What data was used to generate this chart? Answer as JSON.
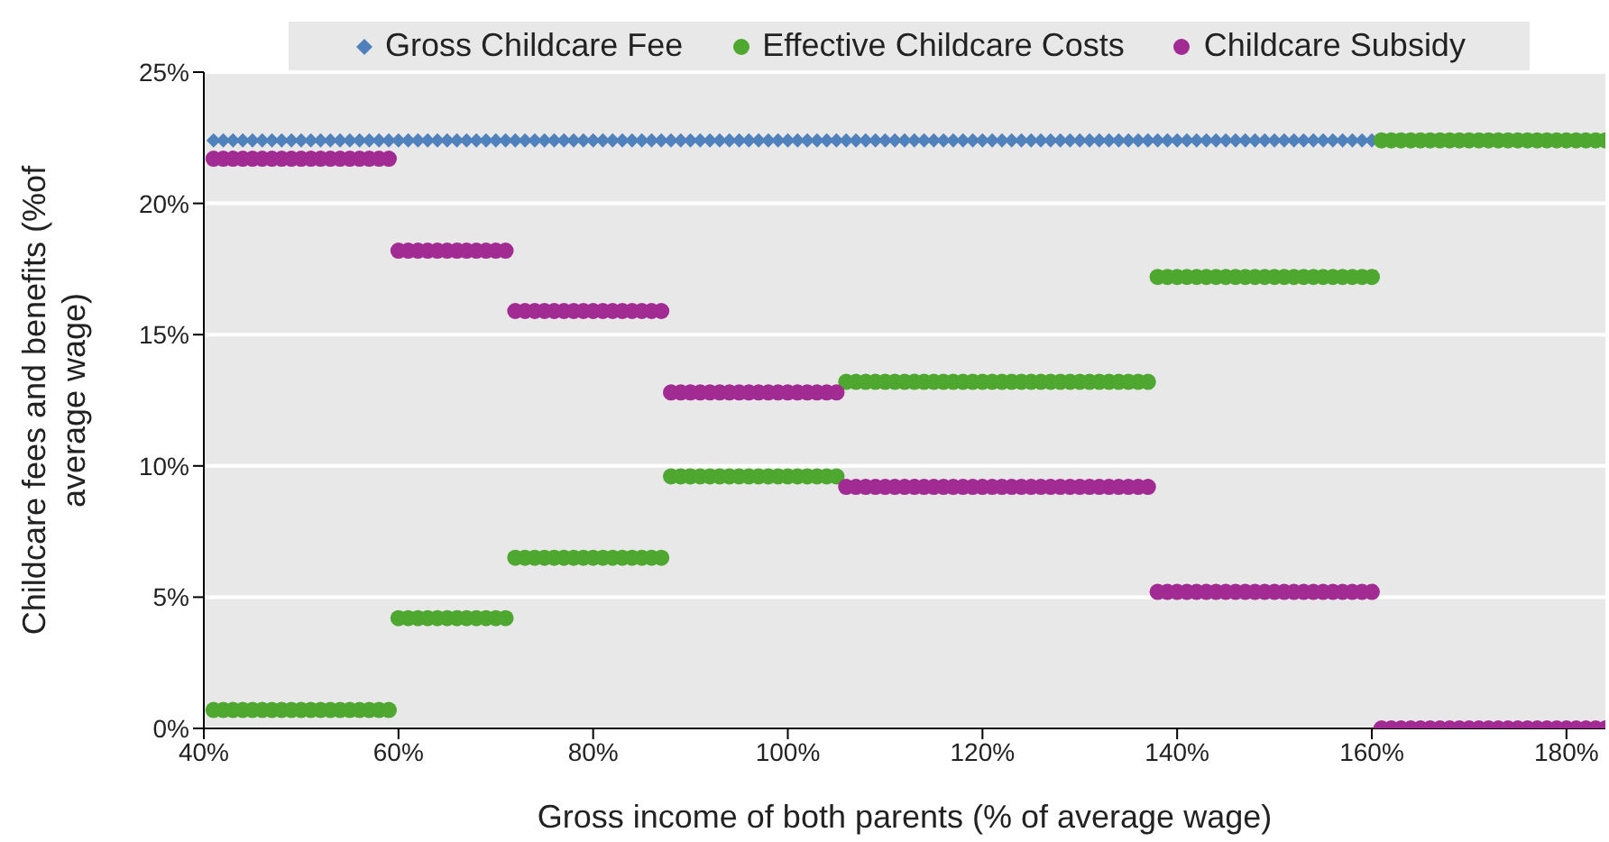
{
  "chart_data": {
    "type": "scatter",
    "xlabel": "Gross income of both parents (% of average wage)",
    "ylabel": "Childcare fees and benefits (%of average wage)",
    "x": [
      41,
      42,
      43,
      44,
      45,
      46,
      47,
      48,
      49,
      50,
      51,
      52,
      53,
      54,
      55,
      56,
      57,
      58,
      59,
      60,
      61,
      62,
      63,
      64,
      65,
      66,
      67,
      68,
      69,
      70,
      71,
      72,
      73,
      74,
      75,
      76,
      77,
      78,
      79,
      80,
      81,
      82,
      83,
      84,
      85,
      86,
      87,
      88,
      89,
      90,
      91,
      92,
      93,
      94,
      95,
      96,
      97,
      98,
      99,
      100,
      101,
      102,
      103,
      104,
      105,
      106,
      107,
      108,
      109,
      110,
      111,
      112,
      113,
      114,
      115,
      116,
      117,
      118,
      119,
      120,
      121,
      122,
      123,
      124,
      125,
      126,
      127,
      128,
      129,
      130,
      131,
      132,
      133,
      134,
      135,
      136,
      137,
      138,
      139,
      140,
      141,
      142,
      143,
      144,
      145,
      146,
      147,
      148,
      149,
      150,
      151,
      152,
      153,
      154,
      155,
      156,
      157,
      158,
      159,
      160,
      161,
      162,
      163,
      164,
      165,
      166,
      167,
      168,
      169,
      170,
      171,
      172,
      173,
      174,
      175,
      176,
      177,
      178,
      179,
      180,
      181,
      182,
      183,
      184
    ],
    "series": [
      {
        "name": "Gross Childcare Fee",
        "color": "#4f81bd",
        "marker": "diamond",
        "x": [
          41,
          42,
          43,
          44,
          45,
          46,
          47,
          48,
          49,
          50,
          51,
          52,
          53,
          54,
          55,
          56,
          57,
          58,
          59,
          60,
          61,
          62,
          63,
          64,
          65,
          66,
          67,
          68,
          69,
          70,
          71,
          72,
          73,
          74,
          75,
          76,
          77,
          78,
          79,
          80,
          81,
          82,
          83,
          84,
          85,
          86,
          87,
          88,
          89,
          90,
          91,
          92,
          93,
          94,
          95,
          96,
          97,
          98,
          99,
          100,
          101,
          102,
          103,
          104,
          105,
          106,
          107,
          108,
          109,
          110,
          111,
          112,
          113,
          114,
          115,
          116,
          117,
          118,
          119,
          120,
          121,
          122,
          123,
          124,
          125,
          126,
          127,
          128,
          129,
          130,
          131,
          132,
          133,
          134,
          135,
          136,
          137,
          138,
          139,
          140,
          141,
          142,
          143,
          144,
          145,
          146,
          147,
          148,
          149,
          150,
          151,
          152,
          153,
          154,
          155,
          156,
          157,
          158,
          159,
          160
        ],
        "values": [
          22.4,
          22.4,
          22.4,
          22.4,
          22.4,
          22.4,
          22.4,
          22.4,
          22.4,
          22.4,
          22.4,
          22.4,
          22.4,
          22.4,
          22.4,
          22.4,
          22.4,
          22.4,
          22.4,
          22.4,
          22.4,
          22.4,
          22.4,
          22.4,
          22.4,
          22.4,
          22.4,
          22.4,
          22.4,
          22.4,
          22.4,
          22.4,
          22.4,
          22.4,
          22.4,
          22.4,
          22.4,
          22.4,
          22.4,
          22.4,
          22.4,
          22.4,
          22.4,
          22.4,
          22.4,
          22.4,
          22.4,
          22.4,
          22.4,
          22.4,
          22.4,
          22.4,
          22.4,
          22.4,
          22.4,
          22.4,
          22.4,
          22.4,
          22.4,
          22.4,
          22.4,
          22.4,
          22.4,
          22.4,
          22.4,
          22.4,
          22.4,
          22.4,
          22.4,
          22.4,
          22.4,
          22.4,
          22.4,
          22.4,
          22.4,
          22.4,
          22.4,
          22.4,
          22.4,
          22.4,
          22.4,
          22.4,
          22.4,
          22.4,
          22.4,
          22.4,
          22.4,
          22.4,
          22.4,
          22.4,
          22.4,
          22.4,
          22.4,
          22.4,
          22.4,
          22.4,
          22.4,
          22.4,
          22.4,
          22.4,
          22.4,
          22.4,
          22.4,
          22.4,
          22.4,
          22.4,
          22.4,
          22.4,
          22.4,
          22.4,
          22.4,
          22.4,
          22.4,
          22.4,
          22.4,
          22.4,
          22.4,
          22.4,
          22.4,
          22.4
        ]
      },
      {
        "name": "Effective Childcare Costs",
        "color": "#4ea72e",
        "marker": "circle",
        "values": [
          0.7,
          0.7,
          0.7,
          0.7,
          0.7,
          0.7,
          0.7,
          0.7,
          0.7,
          0.7,
          0.7,
          0.7,
          0.7,
          0.7,
          0.7,
          0.7,
          0.7,
          0.7,
          0.7,
          4.2,
          4.2,
          4.2,
          4.2,
          4.2,
          4.2,
          4.2,
          4.2,
          4.2,
          4.2,
          4.2,
          4.2,
          6.5,
          6.5,
          6.5,
          6.5,
          6.5,
          6.5,
          6.5,
          6.5,
          6.5,
          6.5,
          6.5,
          6.5,
          6.5,
          6.5,
          6.5,
          6.5,
          9.6,
          9.6,
          9.6,
          9.6,
          9.6,
          9.6,
          9.6,
          9.6,
          9.6,
          9.6,
          9.6,
          9.6,
          9.6,
          9.6,
          9.6,
          9.6,
          9.6,
          9.6,
          13.2,
          13.2,
          13.2,
          13.2,
          13.2,
          13.2,
          13.2,
          13.2,
          13.2,
          13.2,
          13.2,
          13.2,
          13.2,
          13.2,
          13.2,
          13.2,
          13.2,
          13.2,
          13.2,
          13.2,
          13.2,
          13.2,
          13.2,
          13.2,
          13.2,
          13.2,
          13.2,
          13.2,
          13.2,
          13.2,
          13.2,
          13.2,
          17.2,
          17.2,
          17.2,
          17.2,
          17.2,
          17.2,
          17.2,
          17.2,
          17.2,
          17.2,
          17.2,
          17.2,
          17.2,
          17.2,
          17.2,
          17.2,
          17.2,
          17.2,
          17.2,
          17.2,
          17.2,
          17.2,
          17.2,
          22.4,
          22.4,
          22.4,
          22.4,
          22.4,
          22.4,
          22.4,
          22.4,
          22.4,
          22.4,
          22.4,
          22.4,
          22.4,
          22.4,
          22.4,
          22.4,
          22.4,
          22.4,
          22.4,
          22.4,
          22.4,
          22.4,
          22.4,
          22.4
        ]
      },
      {
        "name": "Childcare Subsidy",
        "color": "#a12b93",
        "marker": "circle",
        "values": [
          21.7,
          21.7,
          21.7,
          21.7,
          21.7,
          21.7,
          21.7,
          21.7,
          21.7,
          21.7,
          21.7,
          21.7,
          21.7,
          21.7,
          21.7,
          21.7,
          21.7,
          21.7,
          21.7,
          18.2,
          18.2,
          18.2,
          18.2,
          18.2,
          18.2,
          18.2,
          18.2,
          18.2,
          18.2,
          18.2,
          18.2,
          15.9,
          15.9,
          15.9,
          15.9,
          15.9,
          15.9,
          15.9,
          15.9,
          15.9,
          15.9,
          15.9,
          15.9,
          15.9,
          15.9,
          15.9,
          15.9,
          12.8,
          12.8,
          12.8,
          12.8,
          12.8,
          12.8,
          12.8,
          12.8,
          12.8,
          12.8,
          12.8,
          12.8,
          12.8,
          12.8,
          12.8,
          12.8,
          12.8,
          12.8,
          9.2,
          9.2,
          9.2,
          9.2,
          9.2,
          9.2,
          9.2,
          9.2,
          9.2,
          9.2,
          9.2,
          9.2,
          9.2,
          9.2,
          9.2,
          9.2,
          9.2,
          9.2,
          9.2,
          9.2,
          9.2,
          9.2,
          9.2,
          9.2,
          9.2,
          9.2,
          9.2,
          9.2,
          9.2,
          9.2,
          9.2,
          9.2,
          5.2,
          5.2,
          5.2,
          5.2,
          5.2,
          5.2,
          5.2,
          5.2,
          5.2,
          5.2,
          5.2,
          5.2,
          5.2,
          5.2,
          5.2,
          5.2,
          5.2,
          5.2,
          5.2,
          5.2,
          5.2,
          5.2,
          5.2,
          0,
          0,
          0,
          0,
          0,
          0,
          0,
          0,
          0,
          0,
          0,
          0,
          0,
          0,
          0,
          0,
          0,
          0,
          0,
          0,
          0,
          0,
          0,
          0
        ]
      }
    ],
    "xlim": [
      40,
      184
    ],
    "xticks": [
      {
        "value": 40,
        "label": "40%"
      },
      {
        "value": 60,
        "label": "60%"
      },
      {
        "value": 80,
        "label": "80%"
      },
      {
        "value": 100,
        "label": "100%"
      },
      {
        "value": 120,
        "label": "120%"
      },
      {
        "value": 140,
        "label": "140%"
      },
      {
        "value": 160,
        "label": "160%"
      },
      {
        "value": 180,
        "label": "180%"
      }
    ],
    "ylim": [
      0,
      25
    ],
    "yticks": [
      {
        "value": 0,
        "label": "0%"
      },
      {
        "value": 5,
        "label": "5%"
      },
      {
        "value": 10,
        "label": "10%"
      },
      {
        "value": 15,
        "label": "15%"
      },
      {
        "value": 20,
        "label": "20%"
      },
      {
        "value": 25,
        "label": "25%"
      }
    ],
    "grid": "y",
    "legend": "top"
  }
}
